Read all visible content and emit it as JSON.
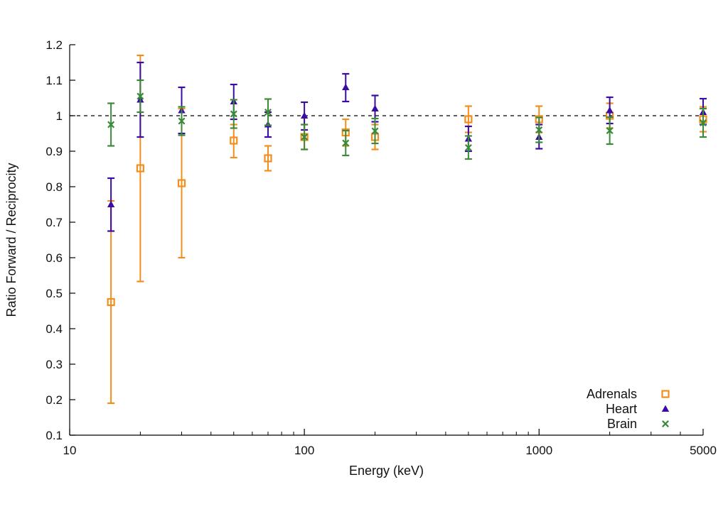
{
  "chart_data": {
    "type": "scatter",
    "title": "",
    "xlabel": "Energy (keV)",
    "ylabel": "Ratio Forward / Reciprocity",
    "xscale": "log",
    "xlim": [
      10,
      5000
    ],
    "ylim": [
      0.1,
      1.2
    ],
    "xticks": [
      {
        "value": 10,
        "label": "10"
      },
      {
        "value": 100,
        "label": "100"
      },
      {
        "value": 1000,
        "label": "1000"
      },
      {
        "value": 5000,
        "label": "5000"
      }
    ],
    "yticks": [
      {
        "value": 0.1,
        "label": "0.1"
      },
      {
        "value": 0.2,
        "label": "0.2"
      },
      {
        "value": 0.3,
        "label": "0.3"
      },
      {
        "value": 0.4,
        "label": "0.4"
      },
      {
        "value": 0.5,
        "label": "0.5"
      },
      {
        "value": 0.6,
        "label": "0.6"
      },
      {
        "value": 0.7,
        "label": "0.7"
      },
      {
        "value": 0.8,
        "label": "0.8"
      },
      {
        "value": 0.9,
        "label": "0.9"
      },
      {
        "value": 1.0,
        "label": "1"
      },
      {
        "value": 1.1,
        "label": "1.1"
      },
      {
        "value": 1.2,
        "label": "1.2"
      }
    ],
    "reference_line": {
      "y": 1.0,
      "style": "dashed",
      "color": "#000000"
    },
    "legend_position": "bottom-right",
    "series": [
      {
        "name": "Adrenals",
        "marker": "open-square",
        "color": "#f28e1c",
        "points": [
          {
            "x": 15,
            "y": 0.475,
            "lo": 0.19,
            "hi": 0.76
          },
          {
            "x": 20,
            "y": 0.852,
            "lo": 0.533,
            "hi": 1.17
          },
          {
            "x": 30,
            "y": 0.81,
            "lo": 0.6,
            "hi": 1.02
          },
          {
            "x": 50,
            "y": 0.93,
            "lo": 0.882,
            "hi": 0.975
          },
          {
            "x": 70,
            "y": 0.88,
            "lo": 0.845,
            "hi": 0.915
          },
          {
            "x": 100,
            "y": 0.94,
            "lo": 0.905,
            "hi": 0.975
          },
          {
            "x": 150,
            "y": 0.953,
            "lo": 0.915,
            "hi": 0.99
          },
          {
            "x": 200,
            "y": 0.94,
            "lo": 0.905,
            "hi": 0.975
          },
          {
            "x": 500,
            "y": 0.99,
            "lo": 0.953,
            "hi": 1.027
          },
          {
            "x": 1000,
            "y": 0.99,
            "lo": 0.953,
            "hi": 1.027
          },
          {
            "x": 2000,
            "y": 1.0,
            "lo": 0.965,
            "hi": 1.035
          },
          {
            "x": 5000,
            "y": 0.99,
            "lo": 0.955,
            "hi": 1.025
          }
        ]
      },
      {
        "name": "Heart",
        "marker": "filled-triangle",
        "color": "#3a0ca3",
        "points": [
          {
            "x": 15,
            "y": 0.75,
            "lo": 0.675,
            "hi": 0.824
          },
          {
            "x": 20,
            "y": 1.045,
            "lo": 0.94,
            "hi": 1.15
          },
          {
            "x": 30,
            "y": 1.015,
            "lo": 0.95,
            "hi": 1.08
          },
          {
            "x": 50,
            "y": 1.04,
            "lo": 0.99,
            "hi": 1.088
          },
          {
            "x": 70,
            "y": 0.975,
            "lo": 0.94,
            "hi": 1.01
          },
          {
            "x": 100,
            "y": 1.0,
            "lo": 0.96,
            "hi": 1.038
          },
          {
            "x": 150,
            "y": 1.08,
            "lo": 1.04,
            "hi": 1.118
          },
          {
            "x": 200,
            "y": 1.02,
            "lo": 0.983,
            "hi": 1.057
          },
          {
            "x": 500,
            "y": 0.935,
            "lo": 0.9,
            "hi": 0.97
          },
          {
            "x": 1000,
            "y": 0.94,
            "lo": 0.907,
            "hi": 0.975
          },
          {
            "x": 2000,
            "y": 1.015,
            "lo": 0.978,
            "hi": 1.052
          },
          {
            "x": 5000,
            "y": 1.01,
            "lo": 0.975,
            "hi": 1.048
          }
        ]
      },
      {
        "name": "Brain",
        "marker": "cross",
        "color": "#3a8a3a",
        "points": [
          {
            "x": 15,
            "y": 0.975,
            "lo": 0.915,
            "hi": 1.035
          },
          {
            "x": 20,
            "y": 1.055,
            "lo": 1.01,
            "hi": 1.1
          },
          {
            "x": 30,
            "y": 0.985,
            "lo": 0.945,
            "hi": 1.025
          },
          {
            "x": 50,
            "y": 1.005,
            "lo": 0.965,
            "hi": 1.045
          },
          {
            "x": 70,
            "y": 1.01,
            "lo": 0.973,
            "hi": 1.047
          },
          {
            "x": 100,
            "y": 0.94,
            "lo": 0.905,
            "hi": 0.975
          },
          {
            "x": 150,
            "y": 0.923,
            "lo": 0.888,
            "hi": 0.958
          },
          {
            "x": 200,
            "y": 0.957,
            "lo": 0.922,
            "hi": 0.992
          },
          {
            "x": 500,
            "y": 0.91,
            "lo": 0.878,
            "hi": 0.943
          },
          {
            "x": 1000,
            "y": 0.96,
            "lo": 0.925,
            "hi": 0.995
          },
          {
            "x": 2000,
            "y": 0.958,
            "lo": 0.92,
            "hi": 0.996
          },
          {
            "x": 5000,
            "y": 0.98,
            "lo": 0.94,
            "hi": 1.02
          }
        ]
      }
    ]
  }
}
